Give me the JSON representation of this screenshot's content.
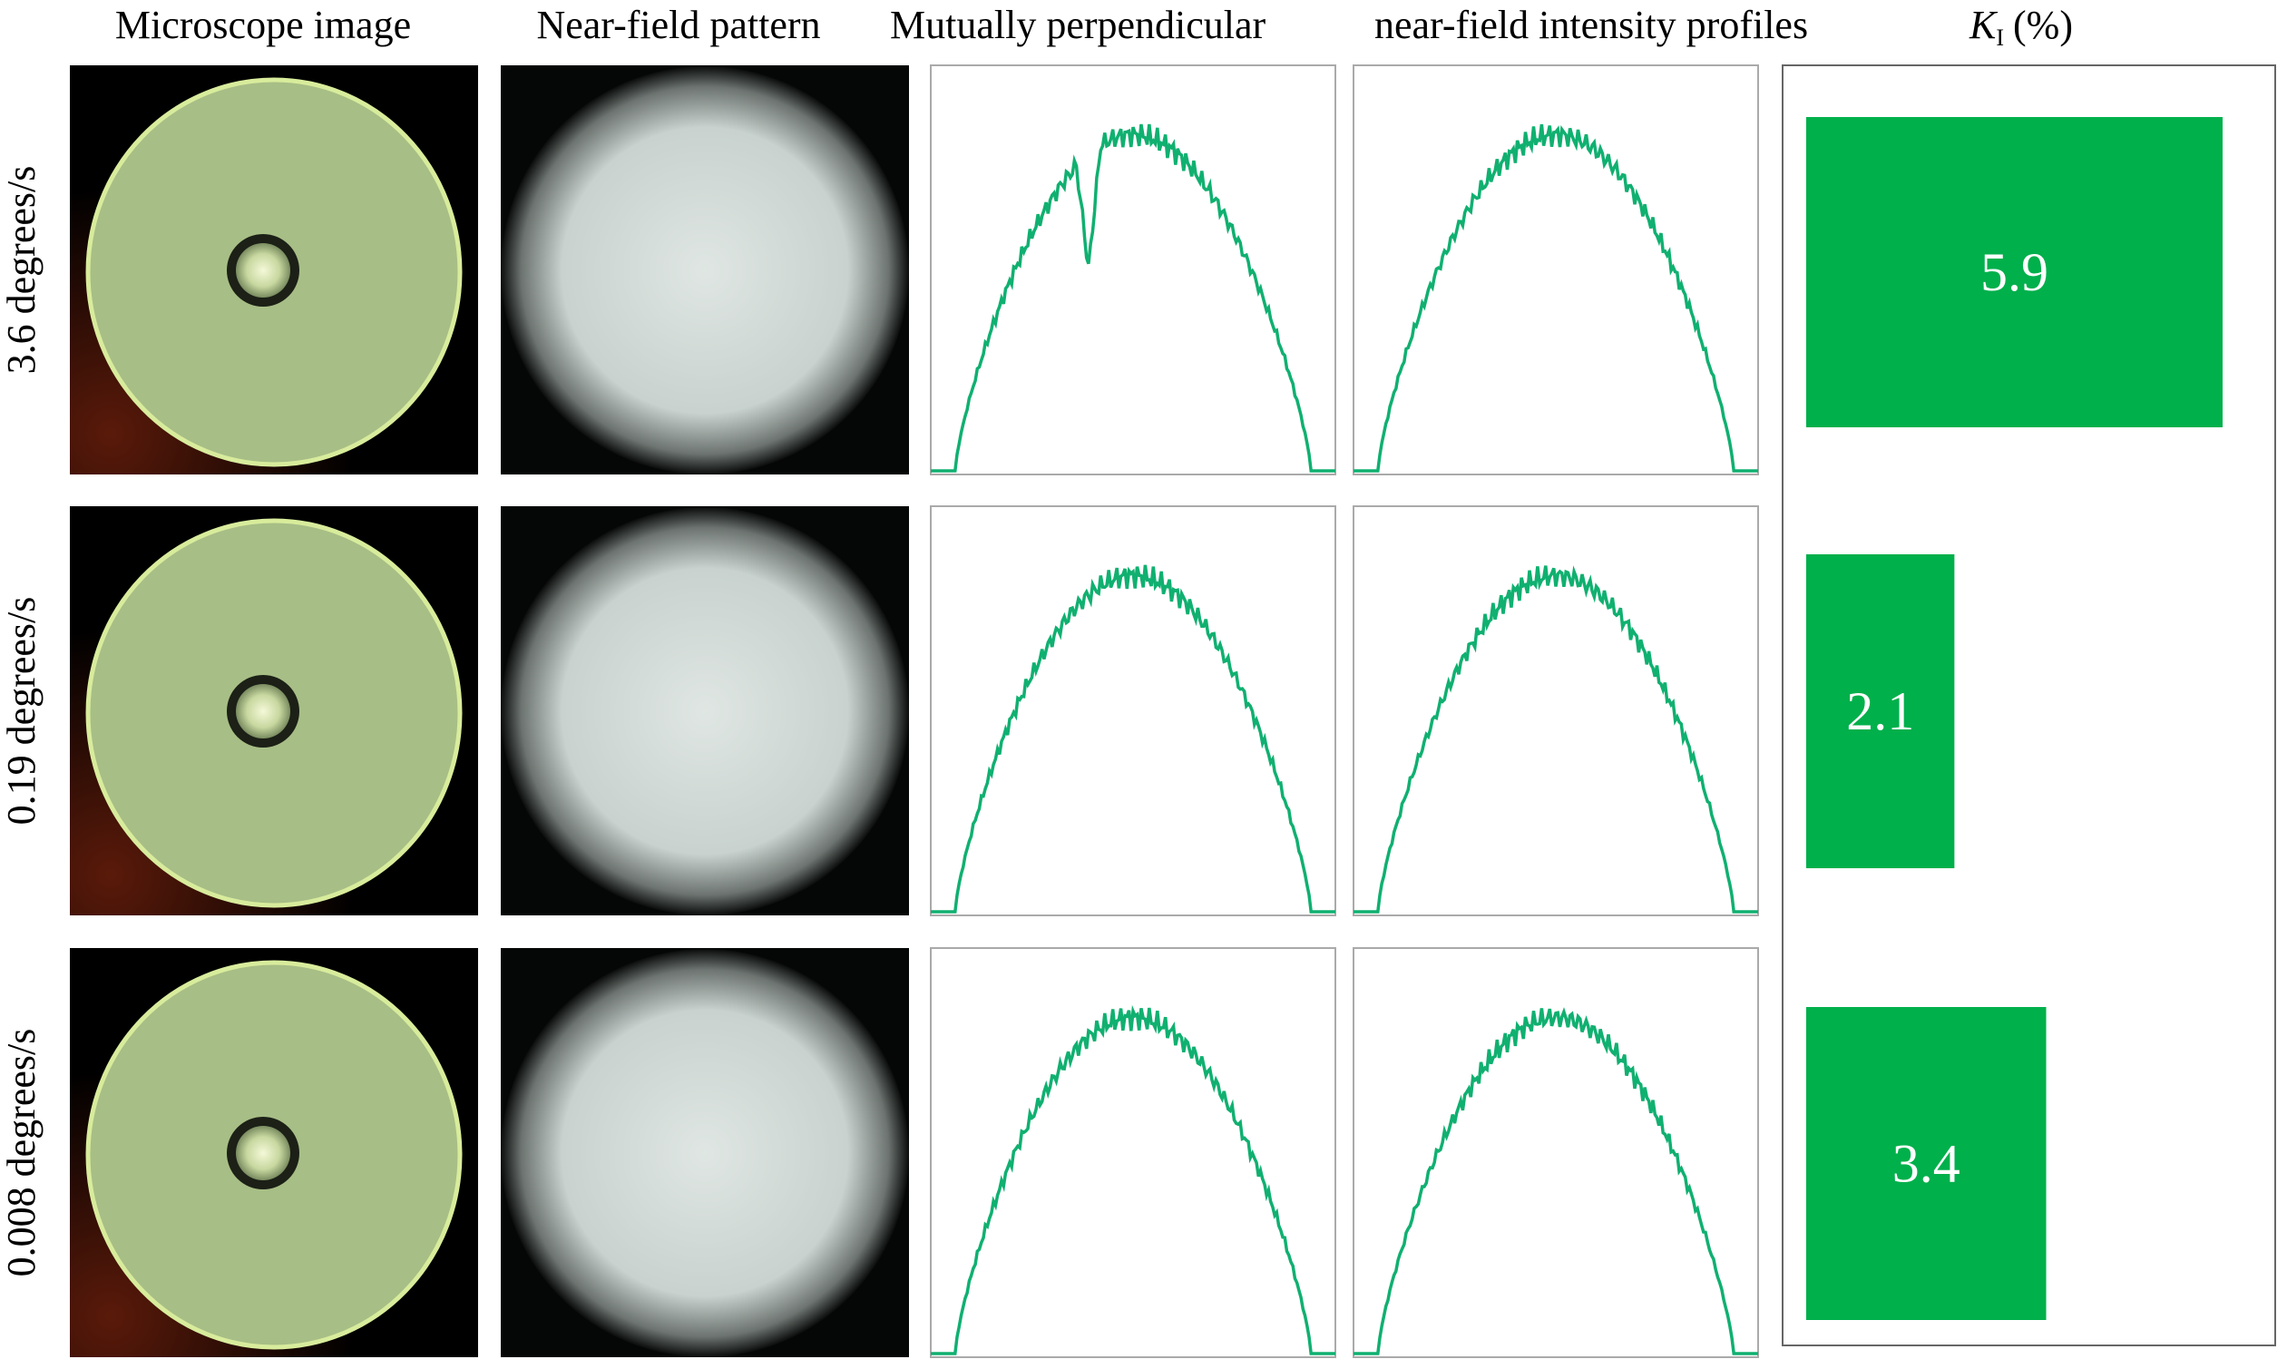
{
  "header": {
    "microscope": "Microscope image",
    "near_field": "Near-field pattern",
    "profiles_1": "Mutually perpendicular",
    "profiles_2": "near-field intensity profiles",
    "ki_symbol": "K",
    "ki_subscript": "I",
    "ki_unit": "(%)"
  },
  "rows": [
    {
      "label": "3.6 degrees/s",
      "ki": 5.9
    },
    {
      "label": "0.19 degrees/s",
      "ki": 2.1
    },
    {
      "label": "0.008 degrees/s",
      "ki": 3.4
    }
  ]
}
